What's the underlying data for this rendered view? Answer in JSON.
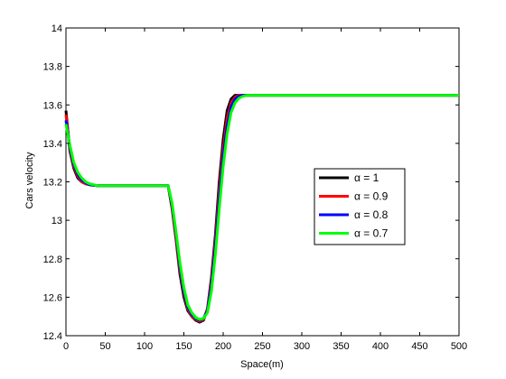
{
  "chart_data": {
    "type": "line",
    "title": "",
    "xlabel": "Space(m)",
    "ylabel": "Cars velocity",
    "xlim": [
      0,
      500
    ],
    "ylim": [
      12.4,
      14
    ],
    "xticks": [
      0,
      50,
      100,
      150,
      200,
      250,
      300,
      350,
      400,
      450,
      500
    ],
    "yticks": [
      12.4,
      12.6,
      12.8,
      13,
      13.2,
      13.4,
      13.6,
      13.8,
      14
    ],
    "xtick_labels": [
      "0",
      "50",
      "100",
      "150",
      "200",
      "250",
      "300",
      "350",
      "400",
      "450",
      "500"
    ],
    "ytick_labels": [
      "12.4",
      "12.6",
      "12.8",
      "13",
      "13.2",
      "13.4",
      "13.6",
      "13.8",
      "14"
    ],
    "grid": false,
    "legend_position": "right",
    "series": [
      {
        "name": "α = 1",
        "color": "#000000",
        "x": [
          0,
          5,
          10,
          15,
          20,
          25,
          30,
          40,
          60,
          100,
          130,
          135,
          140,
          145,
          150,
          155,
          160,
          165,
          170,
          175,
          180,
          185,
          190,
          195,
          200,
          205,
          210,
          215,
          220,
          230,
          250,
          300,
          400,
          500
        ],
        "y": [
          13.57,
          13.36,
          13.27,
          13.22,
          13.2,
          13.19,
          13.185,
          13.18,
          13.18,
          13.18,
          13.18,
          13.06,
          12.9,
          12.72,
          12.6,
          12.53,
          12.5,
          12.48,
          12.47,
          12.48,
          12.54,
          12.7,
          12.92,
          13.2,
          13.42,
          13.57,
          13.63,
          13.65,
          13.65,
          13.65,
          13.65,
          13.65,
          13.65,
          13.65
        ]
      },
      {
        "name": "α = 0.9",
        "color": "#ff0000",
        "x": [
          0,
          5,
          10,
          15,
          20,
          25,
          30,
          40,
          60,
          100,
          130,
          135,
          140,
          145,
          150,
          155,
          160,
          165,
          170,
          175,
          180,
          185,
          190,
          195,
          200,
          205,
          210,
          215,
          220,
          225,
          230,
          250,
          300,
          400,
          500
        ],
        "y": [
          13.55,
          13.37,
          13.28,
          13.23,
          13.2,
          13.19,
          13.185,
          13.18,
          13.18,
          13.18,
          13.18,
          13.07,
          12.91,
          12.74,
          12.62,
          12.54,
          12.5,
          12.485,
          12.475,
          12.485,
          12.54,
          12.68,
          12.89,
          13.15,
          13.37,
          13.53,
          13.61,
          13.64,
          13.65,
          13.65,
          13.65,
          13.65,
          13.65,
          13.65,
          13.65
        ]
      },
      {
        "name": "α = 0.8",
        "color": "#0000ff",
        "x": [
          0,
          5,
          10,
          15,
          20,
          25,
          30,
          40,
          60,
          100,
          130,
          135,
          140,
          145,
          150,
          155,
          160,
          165,
          170,
          175,
          180,
          185,
          190,
          195,
          200,
          205,
          210,
          215,
          220,
          225,
          230,
          250,
          300,
          400,
          500
        ],
        "y": [
          13.52,
          13.38,
          13.29,
          13.24,
          13.21,
          13.195,
          13.185,
          13.18,
          13.18,
          13.18,
          13.18,
          13.08,
          12.93,
          12.76,
          12.63,
          12.55,
          12.51,
          12.49,
          12.48,
          12.49,
          12.53,
          12.66,
          12.86,
          13.11,
          13.33,
          13.49,
          13.59,
          13.63,
          13.645,
          13.65,
          13.65,
          13.65,
          13.65,
          13.65,
          13.65
        ]
      },
      {
        "name": "α = 0.7",
        "color": "#00ff00",
        "x": [
          0,
          5,
          10,
          15,
          20,
          25,
          30,
          40,
          60,
          100,
          130,
          135,
          140,
          145,
          150,
          155,
          160,
          165,
          170,
          175,
          180,
          185,
          190,
          195,
          200,
          205,
          210,
          215,
          220,
          225,
          230,
          240,
          250,
          300,
          400,
          500
        ],
        "y": [
          13.5,
          13.39,
          13.3,
          13.25,
          13.22,
          13.2,
          13.19,
          13.18,
          13.18,
          13.18,
          13.18,
          13.09,
          12.94,
          12.78,
          12.65,
          12.56,
          12.52,
          12.495,
          12.485,
          12.49,
          12.52,
          12.63,
          12.82,
          13.06,
          13.28,
          13.45,
          13.56,
          13.61,
          13.635,
          13.645,
          13.65,
          13.65,
          13.65,
          13.65,
          13.65,
          13.65
        ]
      }
    ]
  }
}
